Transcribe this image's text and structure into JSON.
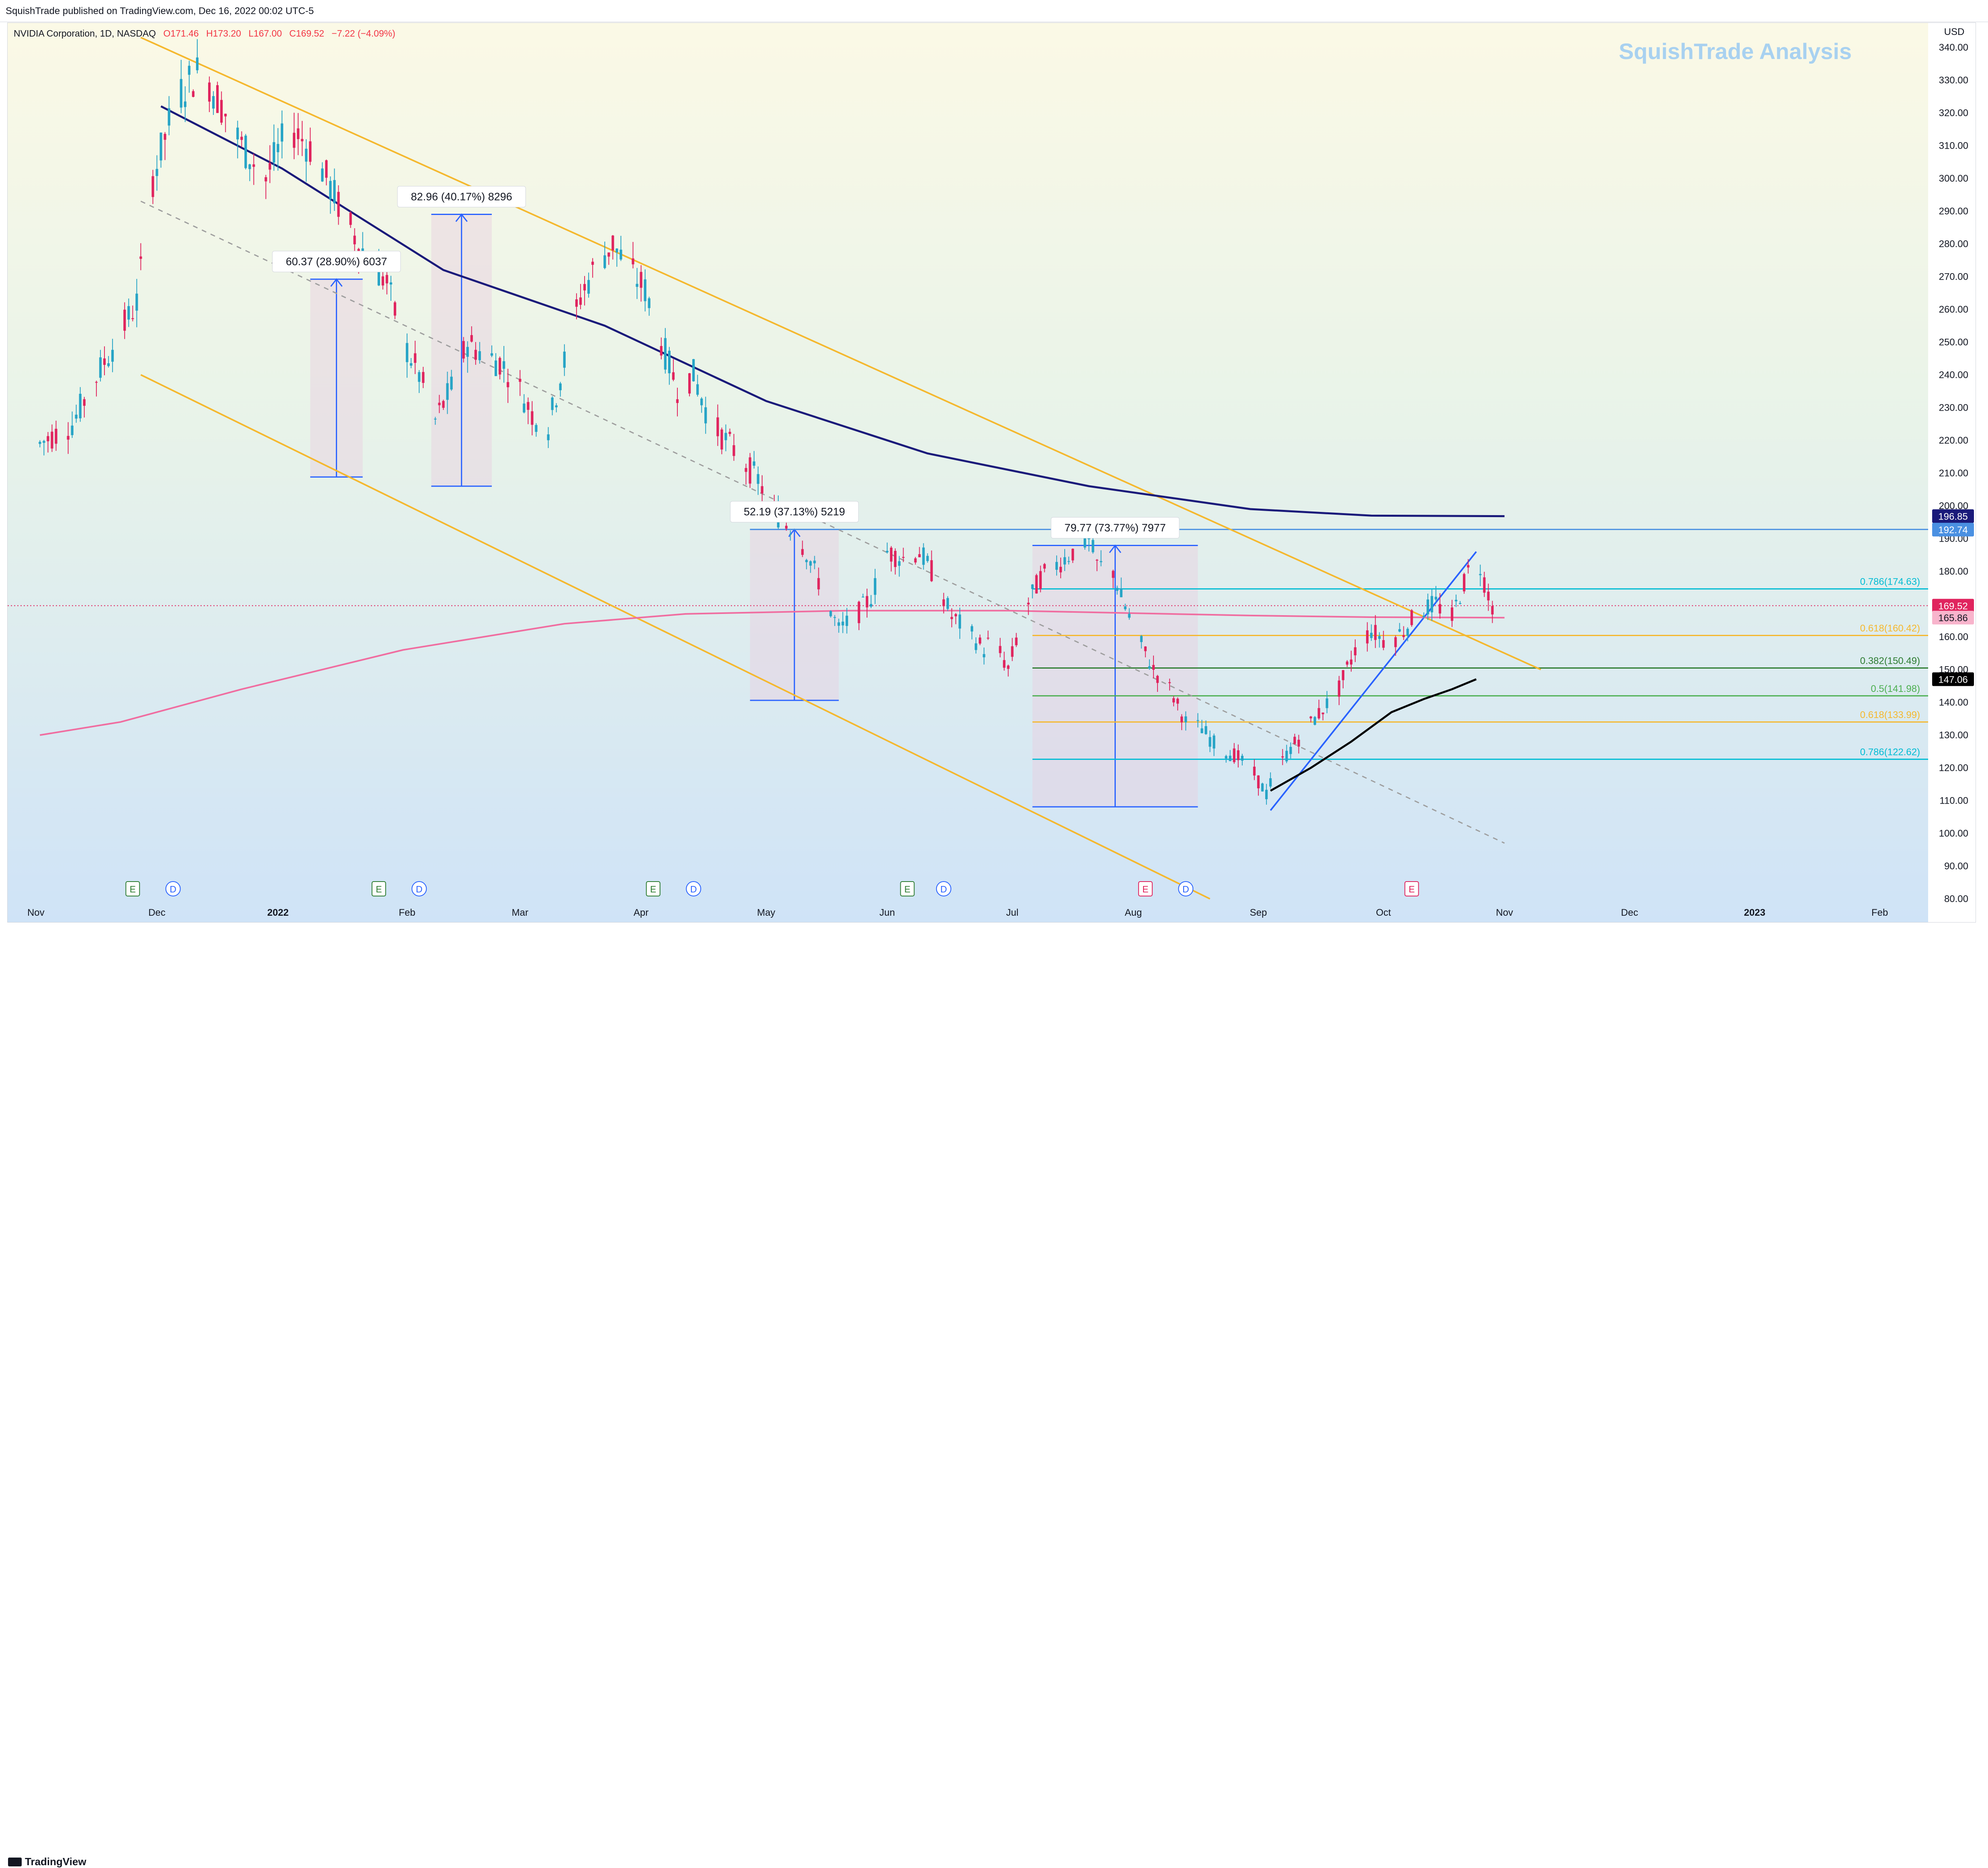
{
  "publisher_line": "SquishTrade published on TradingView.com, Dec 16, 2022 00:02 UTC-5",
  "watermark": "SquishTrade Analysis",
  "symbol_line": "NVIDIA Corporation, 1D, NASDAQ",
  "ohlc": {
    "o": "O171.46",
    "h": "H173.20",
    "l": "L167.00",
    "c": "C169.52",
    "chg": "−7.22 (−4.09%)"
  },
  "footer_logo": "TradingView",
  "colors": {
    "up": "#26a4c6",
    "down": "#e0245e",
    "ma200": "#1a1a7a",
    "ma_pink": "#f06da0",
    "channel": "#f5b82e",
    "accent_blue": "#2962ff"
  },
  "chart_data": {
    "type": "candlestick",
    "title": "NVIDIA Corporation, 1D, NASDAQ",
    "currency": "USD",
    "ylim": [
      80,
      345
    ],
    "y_ticks": [
      "340.00",
      "330.00",
      "320.00",
      "310.00",
      "300.00",
      "290.00",
      "280.00",
      "270.00",
      "260.00",
      "250.00",
      "240.00",
      "230.00",
      "220.00",
      "210.00",
      "200.00",
      "190.00",
      "180.00",
      "170.00",
      "160.00",
      "150.00",
      "140.00",
      "130.00",
      "120.00",
      "110.00",
      "100.00",
      "90.00",
      "80.00"
    ],
    "x_ticks": [
      "Nov",
      "Dec",
      "2022",
      "Feb",
      "Mar",
      "Apr",
      "May",
      "Jun",
      "Jul",
      "Aug",
      "Sep",
      "Oct",
      "Nov",
      "Dec",
      "2023",
      "Feb",
      "Mar"
    ],
    "price_path": [
      [
        0,
        219
      ],
      [
        8,
        225
      ],
      [
        16,
        244
      ],
      [
        24,
        262
      ],
      [
        28,
        300
      ],
      [
        34,
        325
      ],
      [
        40,
        334
      ],
      [
        46,
        320
      ],
      [
        50,
        310
      ],
      [
        56,
        300
      ],
      [
        62,
        316
      ],
      [
        68,
        308
      ],
      [
        74,
        292
      ],
      [
        80,
        278
      ],
      [
        86,
        268
      ],
      [
        90,
        250
      ],
      [
        94,
        240
      ],
      [
        98,
        226
      ],
      [
        102,
        236
      ],
      [
        106,
        250
      ],
      [
        110,
        246
      ],
      [
        114,
        244
      ],
      [
        118,
        238
      ],
      [
        122,
        228
      ],
      [
        126,
        224
      ],
      [
        130,
        244
      ],
      [
        134,
        264
      ],
      [
        138,
        274
      ],
      [
        142,
        280
      ],
      [
        146,
        272
      ],
      [
        150,
        266
      ],
      [
        154,
        250
      ],
      [
        158,
        236
      ],
      [
        162,
        240
      ],
      [
        166,
        226
      ],
      [
        170,
        220
      ],
      [
        174,
        214
      ],
      [
        178,
        208
      ],
      [
        182,
        198
      ],
      [
        186,
        194
      ],
      [
        190,
        186
      ],
      [
        194,
        174
      ],
      [
        196,
        168
      ],
      [
        198,
        162
      ],
      [
        202,
        166
      ],
      [
        206,
        172
      ],
      [
        210,
        186
      ],
      [
        214,
        184
      ],
      [
        218,
        186
      ],
      [
        222,
        178
      ],
      [
        226,
        166
      ],
      [
        230,
        162
      ],
      [
        234,
        156
      ],
      [
        236,
        160
      ],
      [
        240,
        150
      ],
      [
        244,
        168
      ],
      [
        248,
        178
      ],
      [
        252,
        182
      ],
      [
        256,
        186
      ],
      [
        260,
        190
      ],
      [
        262,
        182
      ],
      [
        266,
        180
      ],
      [
        268,
        172
      ],
      [
        272,
        160
      ],
      [
        276,
        150
      ],
      [
        280,
        144
      ],
      [
        284,
        134
      ],
      [
        288,
        132
      ],
      [
        292,
        126
      ],
      [
        296,
        124
      ],
      [
        300,
        120
      ],
      [
        304,
        112
      ],
      [
        306,
        118
      ],
      [
        310,
        126
      ],
      [
        314,
        132
      ],
      [
        318,
        138
      ],
      [
        322,
        144
      ],
      [
        326,
        156
      ],
      [
        330,
        162
      ],
      [
        334,
        158
      ],
      [
        338,
        162
      ],
      [
        342,
        168
      ],
      [
        346,
        170
      ],
      [
        350,
        166
      ],
      [
        354,
        180
      ],
      [
        356,
        186
      ],
      [
        358,
        177
      ],
      [
        360,
        169.52
      ]
    ],
    "ma_dark": [
      [
        30,
        322
      ],
      [
        60,
        303
      ],
      [
        100,
        272
      ],
      [
        140,
        255
      ],
      [
        180,
        232
      ],
      [
        220,
        216
      ],
      [
        260,
        206
      ],
      [
        300,
        199
      ],
      [
        330,
        197
      ],
      [
        363,
        196.85
      ]
    ],
    "ma_pink": [
      [
        0,
        130
      ],
      [
        20,
        134
      ],
      [
        50,
        144
      ],
      [
        90,
        156
      ],
      [
        130,
        164
      ],
      [
        160,
        167
      ],
      [
        200,
        168
      ],
      [
        240,
        168
      ],
      [
        280,
        167
      ],
      [
        300,
        166.5
      ],
      [
        330,
        166
      ],
      [
        363,
        165.86
      ]
    ],
    "ma_black": [
      [
        305,
        113
      ],
      [
        315,
        120
      ],
      [
        325,
        128
      ],
      [
        335,
        137
      ],
      [
        343,
        141
      ],
      [
        350,
        144
      ],
      [
        356,
        147.06
      ]
    ],
    "channel_upper": [
      [
        25,
        343
      ],
      [
        372,
        150
      ]
    ],
    "channel_lower": [
      [
        25,
        240
      ],
      [
        290,
        80
      ]
    ],
    "dashed_trend": [
      [
        25,
        293
      ],
      [
        363,
        97
      ]
    ],
    "uptrend_line": [
      [
        305,
        107
      ],
      [
        356,
        186
      ]
    ],
    "measure_boxes": [
      {
        "label": "60.37 (28.90%) 6037",
        "x0": 67,
        "x1": 80,
        "low": 208.8,
        "high": 269.2
      },
      {
        "label": "82.96 (40.17%) 8296",
        "x0": 97,
        "x1": 112,
        "low": 206,
        "high": 289
      },
      {
        "label": "52.19 (37.13%) 5219",
        "x0": 176,
        "x1": 198,
        "low": 140.6,
        "high": 192.8
      },
      {
        "label": "79.77 (73.77%) 7977",
        "x0": 246,
        "x1": 287,
        "low": 108.1,
        "high": 187.9
      }
    ],
    "fib_levels": [
      {
        "label": "0.786(174.63)",
        "value": 174.63,
        "color": "#00bcd4"
      },
      {
        "label": "0.618(160.42)",
        "value": 160.42,
        "color": "#f5b82e"
      },
      {
        "label": "0.382(150.49)",
        "value": 150.49,
        "color": "#2e7d32"
      },
      {
        "label": "0.5(141.98)",
        "value": 141.98,
        "color": "#4caf50"
      },
      {
        "label": "0.618(133.99)",
        "value": 133.99,
        "color": "#f5b82e"
      },
      {
        "label": "0.786(122.62)",
        "value": 122.62,
        "color": "#00bcd4"
      }
    ],
    "price_tags": [
      {
        "text": "196.85",
        "value": 196.85,
        "bg": "#1a1a7a",
        "fg": "#ffffff"
      },
      {
        "text": "192.74",
        "value": 192.74,
        "bg": "#4a90e2",
        "fg": "#ffffff"
      },
      {
        "text": "169.52",
        "value": 169.52,
        "bg": "#e0245e",
        "fg": "#ffffff"
      },
      {
        "text": "165.86",
        "value": 165.86,
        "bg": "#f8b4cc",
        "fg": "#131722"
      },
      {
        "text": "147.06",
        "value": 147.06,
        "bg": "#000000",
        "fg": "#ffffff"
      }
    ],
    "events": [
      {
        "day": 23,
        "type": "E",
        "color": "#2e7d32"
      },
      {
        "day": 33,
        "type": "D",
        "color": "#2962ff"
      },
      {
        "day": 84,
        "type": "E",
        "color": "#2e7d32"
      },
      {
        "day": 94,
        "type": "D",
        "color": "#2962ff"
      },
      {
        "day": 152,
        "type": "E",
        "color": "#2e7d32"
      },
      {
        "day": 162,
        "type": "D",
        "color": "#2962ff"
      },
      {
        "day": 215,
        "type": "E",
        "color": "#2e7d32"
      },
      {
        "day": 224,
        "type": "D",
        "color": "#2962ff"
      },
      {
        "day": 274,
        "type": "E",
        "color": "#e0245e"
      },
      {
        "day": 284,
        "type": "D",
        "color": "#2962ff"
      },
      {
        "day": 340,
        "type": "E",
        "color": "#e0245e"
      }
    ]
  }
}
